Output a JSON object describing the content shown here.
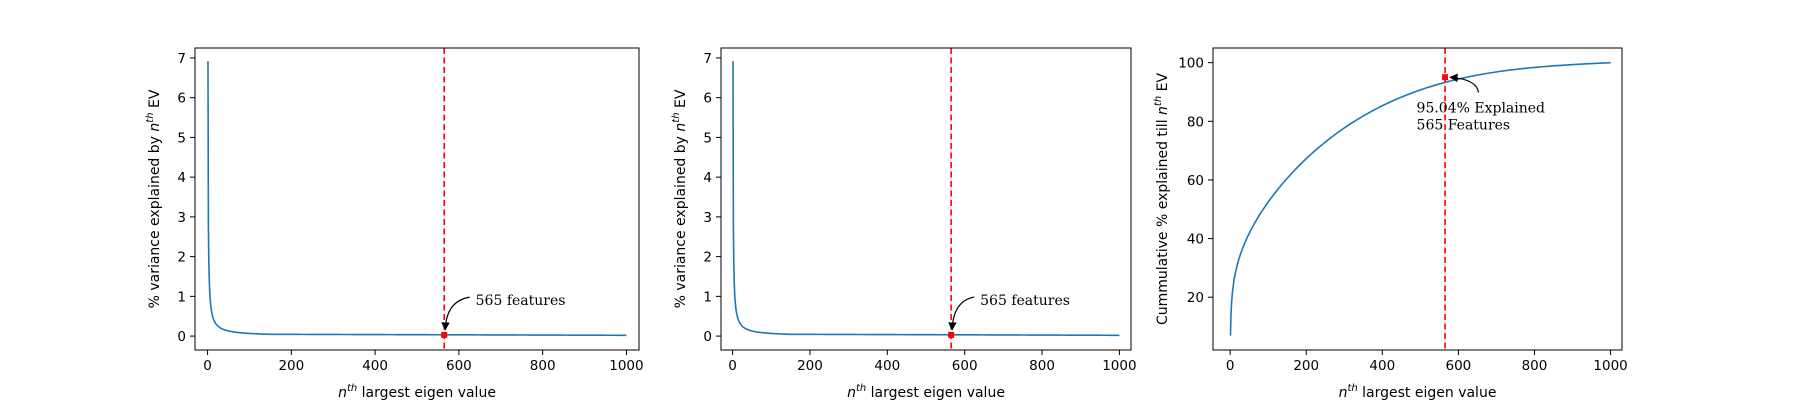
{
  "chart_data": [
    {
      "type": "line",
      "id": "eigen-pct",
      "x_range": [
        1,
        1000
      ],
      "y_curve": {
        "first_value": 6.92,
        "decay": "power",
        "tail_value": 0.02,
        "knee": 1.6
      },
      "xlim": [
        -30,
        1030
      ],
      "ylim": [
        -0.35,
        7.25
      ],
      "xticks": [
        0,
        200,
        400,
        600,
        800,
        1000
      ],
      "yticks": [
        0,
        1,
        2,
        3,
        4,
        5,
        6,
        7
      ],
      "xlabel": {
        "pre": "n",
        "sup": "th",
        "post": " largest eigen value"
      },
      "ylabel": {
        "pre": "% variance explained by n",
        "sup": "th",
        "post": " EV"
      },
      "cutoff_x": 565,
      "marker": {
        "x": 565,
        "y": 0.03
      },
      "annotation": {
        "lines": [
          "565 features"
        ],
        "x": 640,
        "y": 0.78
      },
      "line_color": "#1f77b4",
      "cutoff_color": "#ff0000"
    },
    {
      "type": "line",
      "id": "eigen-pct-2",
      "x_range": [
        1,
        1000
      ],
      "y_curve": {
        "first_value": 6.92,
        "decay": "power",
        "tail_value": 0.02,
        "knee": 1.6
      },
      "xlim": [
        -30,
        1030
      ],
      "ylim": [
        -0.35,
        7.25
      ],
      "xticks": [
        0,
        200,
        400,
        600,
        800,
        1000
      ],
      "yticks": [
        0,
        1,
        2,
        3,
        4,
        5,
        6,
        7
      ],
      "xlabel": {
        "pre": "n",
        "sup": "th",
        "post": " largest eigen value"
      },
      "ylabel": {
        "pre": "% variance explained by n",
        "sup": "th",
        "post": " EV"
      },
      "cutoff_x": 565,
      "marker": {
        "x": 565,
        "y": 0.03
      },
      "annotation": {
        "lines": [
          "565 features"
        ],
        "x": 640,
        "y": 0.78
      },
      "line_color": "#1f77b4",
      "cutoff_color": "#ff0000"
    },
    {
      "type": "line",
      "id": "eigen-cumulative",
      "x_range": [
        1,
        1000
      ],
      "y_curve": {
        "first_value": 6.92,
        "decay": "cumulative",
        "end_value": 100,
        "value_at_cutoff": 95.04
      },
      "xlim": [
        -45,
        1030
      ],
      "ylim": [
        2,
        105
      ],
      "xticks": [
        0,
        200,
        400,
        600,
        800,
        1000
      ],
      "yticks": [
        20,
        40,
        60,
        80,
        100
      ],
      "xlabel": {
        "pre": "n",
        "sup": "th",
        "post": " largest eigen value"
      },
      "ylabel": {
        "pre": "Cummulative % explained till n",
        "sup": "th",
        "post": " EV"
      },
      "cutoff_x": 565,
      "marker": {
        "x": 565,
        "y": 95.04
      },
      "annotation": {
        "lines": [
          "95.04% Explained",
          "565 Features"
        ],
        "x": 490,
        "y": 83
      },
      "line_color": "#1f77b4",
      "cutoff_color": "#ff0000"
    }
  ]
}
